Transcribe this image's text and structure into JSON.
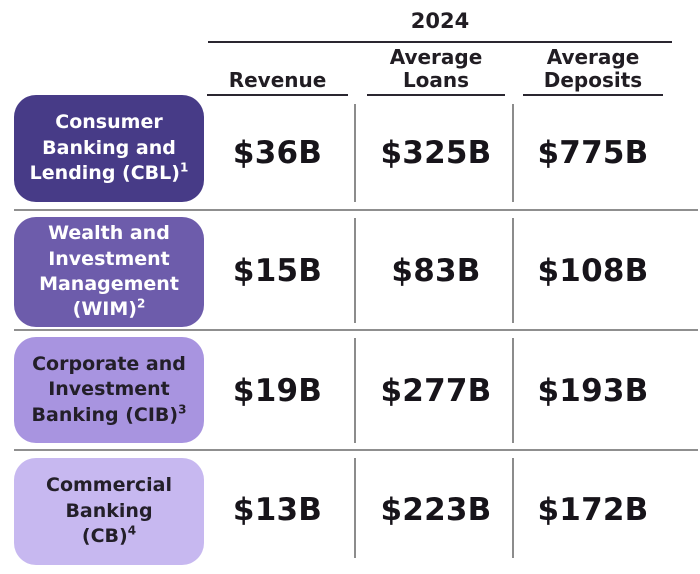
{
  "title_year": "2024",
  "columns": [
    {
      "label": "Revenue"
    },
    {
      "label": "Average Loans"
    },
    {
      "label": "Average Deposits"
    }
  ],
  "rows": [
    {
      "segment": "Consumer Banking and Lending (CBL)",
      "label_lines": [
        "Consumer",
        "Banking and"
      ],
      "label_last": "Lending (CBL)",
      "footnote": "1",
      "values": {
        "revenue": "$36B",
        "average_loans": "$325B",
        "average_deposits": "$775B"
      },
      "colors": {
        "bg": "#473b87",
        "fg": "#ffffff"
      }
    },
    {
      "segment": "Wealth and Investment Management (WIM)",
      "label_lines": [
        "Wealth and",
        "Investment",
        "Management"
      ],
      "label_last": "(WIM)",
      "footnote": "2",
      "values": {
        "revenue": "$15B",
        "average_loans": "$83B",
        "average_deposits": "$108B"
      },
      "colors": {
        "bg": "#6d5cab",
        "fg": "#ffffff"
      }
    },
    {
      "segment": "Corporate and Investment Banking (CIB)",
      "label_lines": [
        "Corporate and",
        "Investment"
      ],
      "label_last": "Banking (CIB)",
      "footnote": "3",
      "values": {
        "revenue": "$19B",
        "average_loans": "$277B",
        "average_deposits": "$193B"
      },
      "colors": {
        "bg": "#a894e0",
        "fg": "#231f29"
      }
    },
    {
      "segment": "Commercial Banking (CB)",
      "label_lines": [
        "Commercial",
        "Banking"
      ],
      "label_last": "(CB)",
      "footnote": "4",
      "values": {
        "revenue": "$13B",
        "average_loans": "$223B",
        "average_deposits": "$172B"
      },
      "colors": {
        "bg": "#c7b8f0",
        "fg": "#231f29"
      }
    }
  ],
  "palette": {
    "header_underline": "#2a2630",
    "row_separator": "#8f8f8f",
    "column_divider": "#8c8c8c",
    "value_text": "#17141a"
  },
  "chart_data": {
    "type": "table",
    "title": "2024",
    "columns": [
      "Revenue",
      "Average Loans",
      "Average Deposits"
    ],
    "unit": "USD billions",
    "rows": [
      {
        "segment": "Consumer Banking and Lending (CBL)",
        "footnote": 1,
        "revenue": 36,
        "average_loans": 325,
        "average_deposits": 775
      },
      {
        "segment": "Wealth and Investment Management (WIM)",
        "footnote": 2,
        "revenue": 15,
        "average_loans": 83,
        "average_deposits": 108
      },
      {
        "segment": "Corporate and Investment Banking (CIB)",
        "footnote": 3,
        "revenue": 19,
        "average_loans": 277,
        "average_deposits": 193
      },
      {
        "segment": "Commercial Banking (CB)",
        "footnote": 4,
        "revenue": 13,
        "average_loans": 223,
        "average_deposits": 172
      }
    ]
  }
}
